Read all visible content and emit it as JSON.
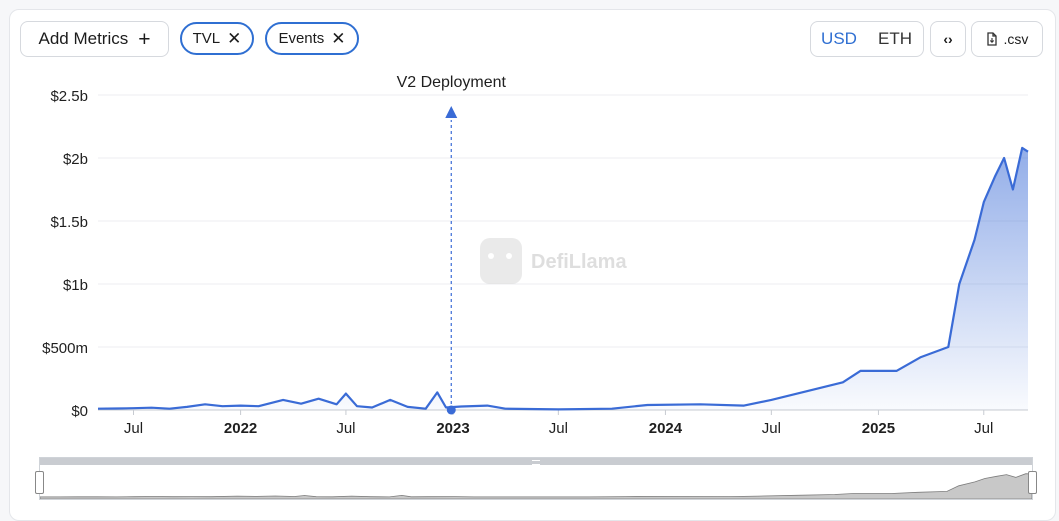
{
  "toolbar": {
    "add_metrics_label": "Add Metrics",
    "add_icon": "plus-icon",
    "pills": [
      {
        "label": "TVL",
        "icon": "close-icon"
      },
      {
        "label": "Events",
        "icon": "close-icon"
      }
    ],
    "currency_options": [
      "USD",
      "ETH"
    ],
    "currency_selected": "USD",
    "embed_icon": "code-icon",
    "csv_label": ".csv",
    "csv_icon": "file-icon"
  },
  "watermark": "DefiLlama",
  "colors": {
    "accent": "#2f6fd2",
    "line": "#3a6bd6",
    "text": "#1f1f1f",
    "grid": "#eceef1"
  },
  "chart_data": {
    "type": "area",
    "title": "",
    "xlabel": "",
    "ylabel": "",
    "y_ticks": [
      "$0",
      "$500m",
      "$1b",
      "$1.5b",
      "$2b",
      "$2.5b"
    ],
    "x_ticks": [
      {
        "label": "Jul",
        "date": "2021-07-01",
        "bold": false
      },
      {
        "label": "2022",
        "date": "2022-01-01",
        "bold": true
      },
      {
        "label": "Jul",
        "date": "2022-07-01",
        "bold": false
      },
      {
        "label": "2023",
        "date": "2023-01-01",
        "bold": true
      },
      {
        "label": "Jul",
        "date": "2023-07-01",
        "bold": false
      },
      {
        "label": "2024",
        "date": "2024-01-01",
        "bold": true
      },
      {
        "label": "Jul",
        "date": "2024-07-01",
        "bold": false
      },
      {
        "label": "2025",
        "date": "2025-01-01",
        "bold": true
      },
      {
        "label": "Jul",
        "date": "2025-07-01",
        "bold": false
      }
    ],
    "x_range": [
      "2021-05-01",
      "2025-09-15"
    ],
    "ylim": [
      0,
      2500
    ],
    "y_unit": "USD millions",
    "grid": true,
    "series": [
      {
        "name": "TVL",
        "points": [
          [
            "2021-05-01",
            10
          ],
          [
            "2021-06-01",
            12
          ],
          [
            "2021-07-01",
            14
          ],
          [
            "2021-08-01",
            18
          ],
          [
            "2021-09-01",
            10
          ],
          [
            "2021-10-01",
            25
          ],
          [
            "2021-11-01",
            45
          ],
          [
            "2021-12-01",
            30
          ],
          [
            "2022-01-01",
            35
          ],
          [
            "2022-02-01",
            30
          ],
          [
            "2022-03-15",
            80
          ],
          [
            "2022-04-15",
            50
          ],
          [
            "2022-05-15",
            90
          ],
          [
            "2022-06-15",
            45
          ],
          [
            "2022-07-01",
            130
          ],
          [
            "2022-07-20",
            30
          ],
          [
            "2022-08-15",
            20
          ],
          [
            "2022-09-15",
            80
          ],
          [
            "2022-10-15",
            25
          ],
          [
            "2022-11-15",
            10
          ],
          [
            "2022-12-05",
            140
          ],
          [
            "2022-12-20",
            20
          ],
          [
            "2023-01-15",
            28
          ],
          [
            "2023-03-01",
            35
          ],
          [
            "2023-04-01",
            10
          ],
          [
            "2023-07-01",
            5
          ],
          [
            "2023-10-01",
            10
          ],
          [
            "2023-12-01",
            40
          ],
          [
            "2024-03-01",
            45
          ],
          [
            "2024-05-15",
            35
          ],
          [
            "2024-07-01",
            80
          ],
          [
            "2024-09-01",
            150
          ],
          [
            "2024-11-01",
            220
          ],
          [
            "2024-12-01",
            310
          ],
          [
            "2025-02-01",
            310
          ],
          [
            "2025-03-15",
            420
          ],
          [
            "2025-05-01",
            500
          ],
          [
            "2025-05-20",
            1000
          ],
          [
            "2025-06-15",
            1350
          ],
          [
            "2025-07-01",
            1650
          ],
          [
            "2025-07-20",
            1850
          ],
          [
            "2025-08-05",
            2000
          ],
          [
            "2025-08-20",
            1750
          ],
          [
            "2025-09-05",
            2080
          ],
          [
            "2025-09-15",
            2050
          ]
        ]
      }
    ],
    "events": [
      {
        "label": "V2 Deployment",
        "date": "2022-12-29",
        "value": 0
      }
    ]
  }
}
